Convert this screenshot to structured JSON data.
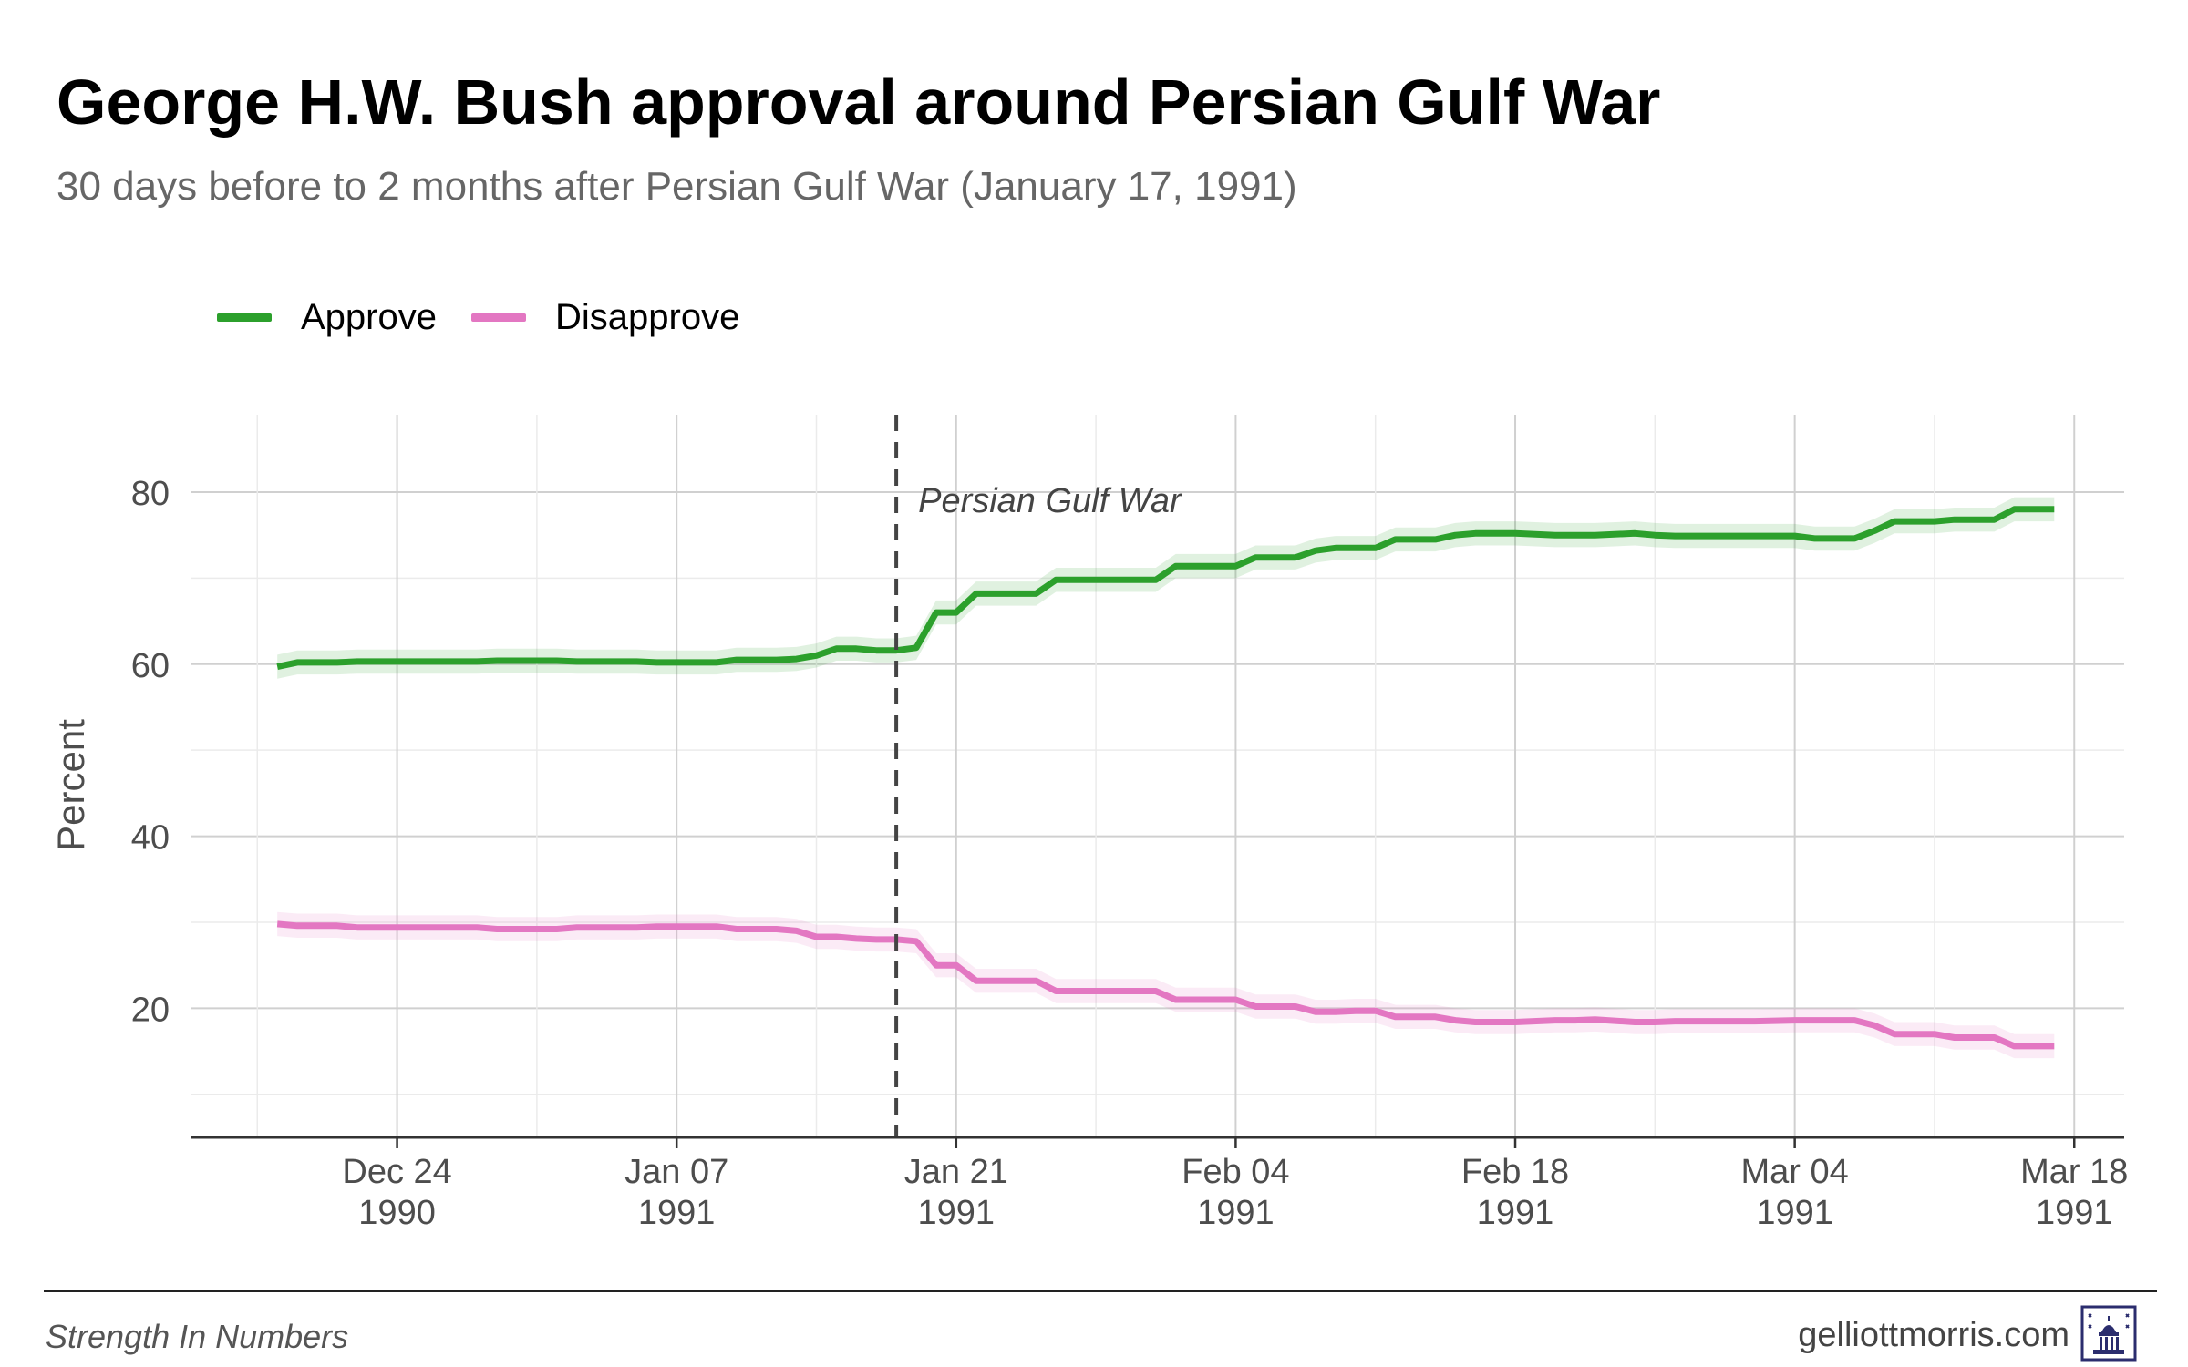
{
  "title": "George H.W. Bush approval around Persian Gulf War",
  "subtitle": "30 days before to 2 months after Persian Gulf War (January 17, 1991)",
  "legend": [
    {
      "label": "Approve",
      "color": "#2ca02c"
    },
    {
      "label": "Disapprove",
      "color": "#e377c2"
    }
  ],
  "footer": {
    "left": "Strength In Numbers",
    "right": "gelliottmorris.com",
    "logo_icon": "capitol-dome-icon"
  },
  "chart_data": {
    "type": "line",
    "title": "George H.W. Bush approval around Persian Gulf War",
    "subtitle": "30 days before to 2 months after Persian Gulf War (January 17, 1991)",
    "xlabel": "",
    "ylabel": "Percent",
    "x_unit": "days since 1990-12-24",
    "xlim": [
      -10.3,
      86.5
    ],
    "ylim": [
      5,
      89
    ],
    "yticks": [
      20,
      40,
      60,
      80
    ],
    "xticks": [
      {
        "value": 0,
        "label": "Dec 24",
        "sublabel": "1990"
      },
      {
        "value": 14,
        "label": "Jan 07",
        "sublabel": "1991"
      },
      {
        "value": 28,
        "label": "Jan 21",
        "sublabel": "1991"
      },
      {
        "value": 42,
        "label": "Feb 04",
        "sublabel": "1991"
      },
      {
        "value": 56,
        "label": "Feb 18",
        "sublabel": "1991"
      },
      {
        "value": 70,
        "label": "Mar 04",
        "sublabel": "1991"
      },
      {
        "value": 84,
        "label": "Mar 18",
        "sublabel": "1991"
      }
    ],
    "grid": true,
    "legend_position": "top-left",
    "annotation": {
      "x": 25,
      "label": "Persian Gulf War",
      "style": "dashed-vertical"
    },
    "band_halfwidth": 1.4,
    "series": [
      {
        "name": "Approve",
        "color": "#2ca02c",
        "x": [
          -6,
          -5,
          -3,
          -2,
          0,
          4,
          5,
          8,
          9,
          12,
          13,
          16,
          17,
          19,
          20,
          21,
          22,
          23,
          24,
          25,
          26,
          27,
          28,
          29,
          30,
          32,
          33,
          35,
          36,
          38,
          39,
          40,
          41,
          42,
          43,
          44,
          45,
          46,
          47,
          48,
          49,
          50,
          51,
          52,
          53,
          54,
          55,
          56,
          58,
          59,
          60,
          62,
          63,
          64,
          66,
          68,
          70,
          71,
          72,
          73,
          74,
          75,
          76,
          77,
          78,
          79,
          80,
          81,
          82,
          83
        ],
        "values": [
          59.7,
          60.2,
          60.2,
          60.3,
          60.3,
          60.3,
          60.4,
          60.4,
          60.3,
          60.3,
          60.2,
          60.2,
          60.5,
          60.5,
          60.6,
          61.0,
          61.8,
          61.8,
          61.6,
          61.6,
          61.9,
          66.0,
          66.0,
          68.2,
          68.2,
          68.2,
          69.8,
          69.8,
          69.8,
          69.8,
          71.4,
          71.4,
          71.4,
          71.4,
          72.4,
          72.4,
          72.4,
          73.2,
          73.5,
          73.5,
          73.5,
          74.5,
          74.5,
          74.5,
          75.0,
          75.2,
          75.2,
          75.2,
          75.0,
          75.0,
          75.0,
          75.2,
          75.0,
          74.9,
          74.9,
          74.9,
          74.9,
          74.6,
          74.6,
          74.6,
          75.5,
          76.6,
          76.6,
          76.6,
          76.8,
          76.8,
          76.8,
          78.0,
          78.0,
          78.0
        ]
      },
      {
        "name": "Disapprove",
        "color": "#e377c2",
        "x": [
          -6,
          -5,
          -3,
          -2,
          0,
          4,
          5,
          8,
          9,
          12,
          13,
          16,
          17,
          19,
          20,
          21,
          22,
          23,
          24,
          25,
          26,
          27,
          28,
          29,
          30,
          32,
          33,
          35,
          36,
          38,
          39,
          40,
          41,
          42,
          43,
          44,
          45,
          46,
          47,
          48,
          49,
          50,
          51,
          52,
          53,
          54,
          55,
          56,
          58,
          59,
          60,
          62,
          63,
          64,
          66,
          68,
          70,
          71,
          72,
          73,
          74,
          75,
          76,
          77,
          78,
          79,
          80,
          81,
          82,
          83
        ],
        "values": [
          29.8,
          29.6,
          29.6,
          29.4,
          29.4,
          29.4,
          29.2,
          29.2,
          29.4,
          29.4,
          29.5,
          29.5,
          29.2,
          29.2,
          29.0,
          28.3,
          28.3,
          28.1,
          28.0,
          28.0,
          27.8,
          25.0,
          25.0,
          23.2,
          23.2,
          23.2,
          22.0,
          22.0,
          22.0,
          22.0,
          21.0,
          21.0,
          21.0,
          21.0,
          20.2,
          20.2,
          20.2,
          19.6,
          19.6,
          19.7,
          19.7,
          19.0,
          19.0,
          19.0,
          18.6,
          18.4,
          18.4,
          18.4,
          18.6,
          18.6,
          18.7,
          18.4,
          18.4,
          18.5,
          18.5,
          18.5,
          18.6,
          18.6,
          18.6,
          18.6,
          18.0,
          17.0,
          17.0,
          17.0,
          16.6,
          16.6,
          16.6,
          15.6,
          15.6,
          15.6
        ]
      }
    ]
  }
}
